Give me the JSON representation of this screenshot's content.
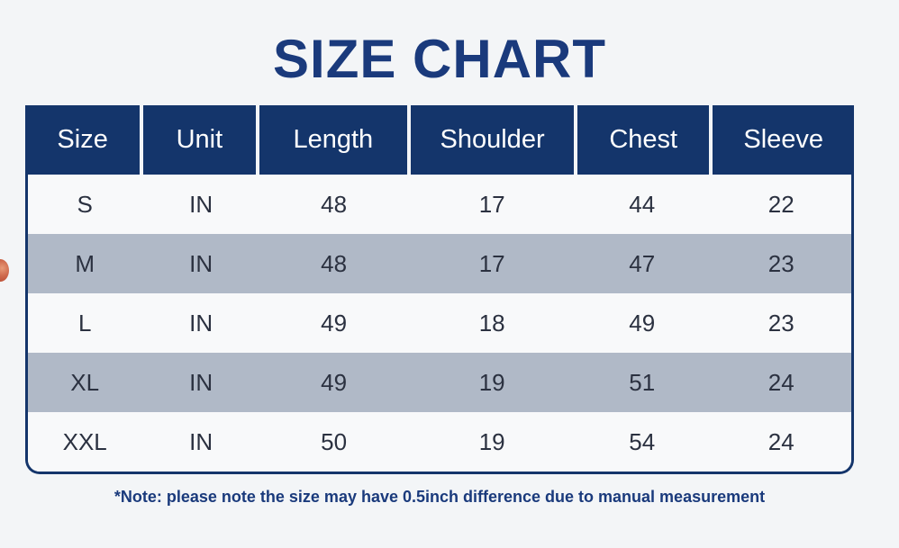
{
  "title": "SIZE CHART",
  "note": "*Note: please note the size may have 0.5inch difference due to manual measurement",
  "table": {
    "columns": [
      "Size",
      "Unit",
      "Length",
      "Shoulder",
      "Chest",
      "Sleeve"
    ],
    "rows": [
      [
        "S",
        "IN",
        "48",
        "17",
        "44",
        "22"
      ],
      [
        "M",
        "IN",
        "48",
        "17",
        "47",
        "23"
      ],
      [
        "L",
        "IN",
        "49",
        "18",
        "49",
        "23"
      ],
      [
        "XL",
        "IN",
        "49",
        "19",
        "51",
        "24"
      ],
      [
        "XXL",
        "IN",
        "50",
        "19",
        "54",
        "24"
      ]
    ]
  },
  "chart_data": {
    "type": "table",
    "title": "SIZE CHART",
    "columns": [
      "Size",
      "Unit",
      "Length",
      "Shoulder",
      "Chest",
      "Sleeve"
    ],
    "rows": [
      [
        "S",
        "IN",
        48,
        17,
        44,
        22
      ],
      [
        "M",
        "IN",
        48,
        17,
        47,
        23
      ],
      [
        "L",
        "IN",
        49,
        18,
        49,
        23
      ],
      [
        "XL",
        "IN",
        49,
        19,
        51,
        24
      ],
      [
        "XXL",
        "IN",
        50,
        19,
        54,
        24
      ]
    ],
    "footnote": "*Note: please note the size may have 0.5inch difference due to manual measurement",
    "layout": "header row navy with white text; body rows alternate white and gray-blue; rounded navy border on body"
  },
  "colors": {
    "page_bg": "#f3f5f7",
    "title_text": "#1a3a7c",
    "header_bg": "#14356b",
    "header_text": "#ffffff",
    "row_bg": "#f8f9fa",
    "row_alt_bg": "#b0b9c7",
    "body_text": "#2b3140",
    "border": "#14356b",
    "note_text": "#1a3a7c",
    "edge_sticker": "#cf6a4d"
  },
  "icons": {
    "edge_sticker": "partial red-orange sticker clipped at left screen edge"
  }
}
